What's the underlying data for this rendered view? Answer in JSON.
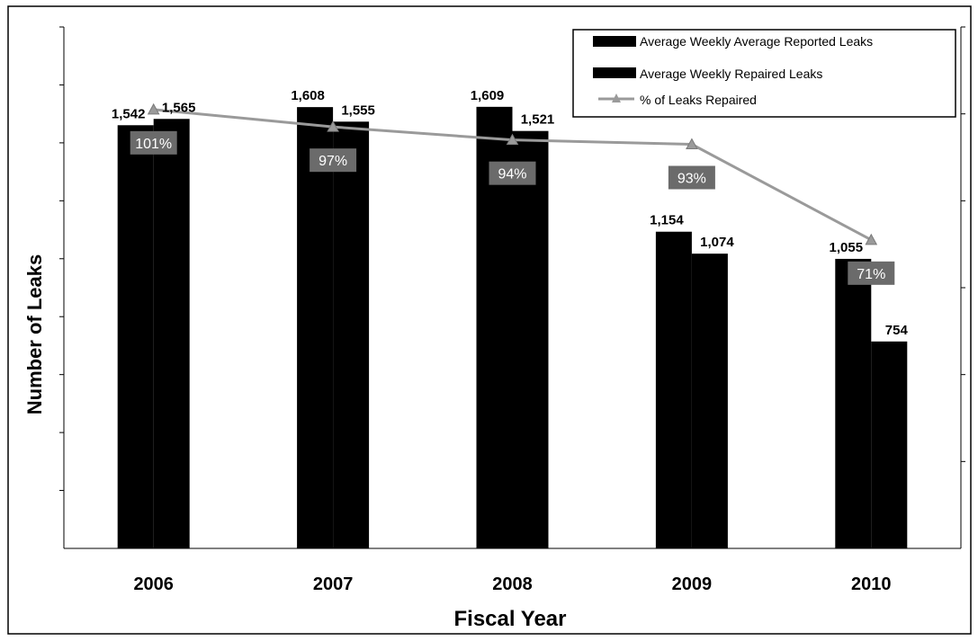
{
  "chart_data": {
    "type": "bar",
    "categories": [
      "2006",
      "2007",
      "2008",
      "2009",
      "2010"
    ],
    "xlabel": "Fiscal Year",
    "ylabel": "Number of Leaks",
    "ylim": [
      0,
      1900
    ],
    "y2lim": [
      0,
      1.2
    ],
    "legend_position": "top-right",
    "series": [
      {
        "name": "Average Weekly Average Reported Leaks",
        "type": "bar",
        "color": "#000000",
        "values": [
          1542,
          1608,
          1609,
          1154,
          1055
        ],
        "labels": [
          "1,542",
          "1,608",
          "1,609",
          "1,154",
          "1,055"
        ]
      },
      {
        "name": "Average Weekly Repaired Leaks",
        "type": "bar",
        "color": "#000000",
        "values": [
          1565,
          1555,
          1521,
          1074,
          754
        ],
        "labels": [
          "1,565",
          "1,555",
          "1,521",
          "1,074",
          "754"
        ]
      },
      {
        "name": "% of Leaks Repaired",
        "type": "line",
        "axis": "secondary",
        "color": "#9a9a9a",
        "values": [
          1.01,
          0.97,
          0.94,
          0.93,
          0.71
        ],
        "labels": [
          "101%",
          "97%",
          "94%",
          "93%",
          "71%"
        ]
      }
    ]
  }
}
